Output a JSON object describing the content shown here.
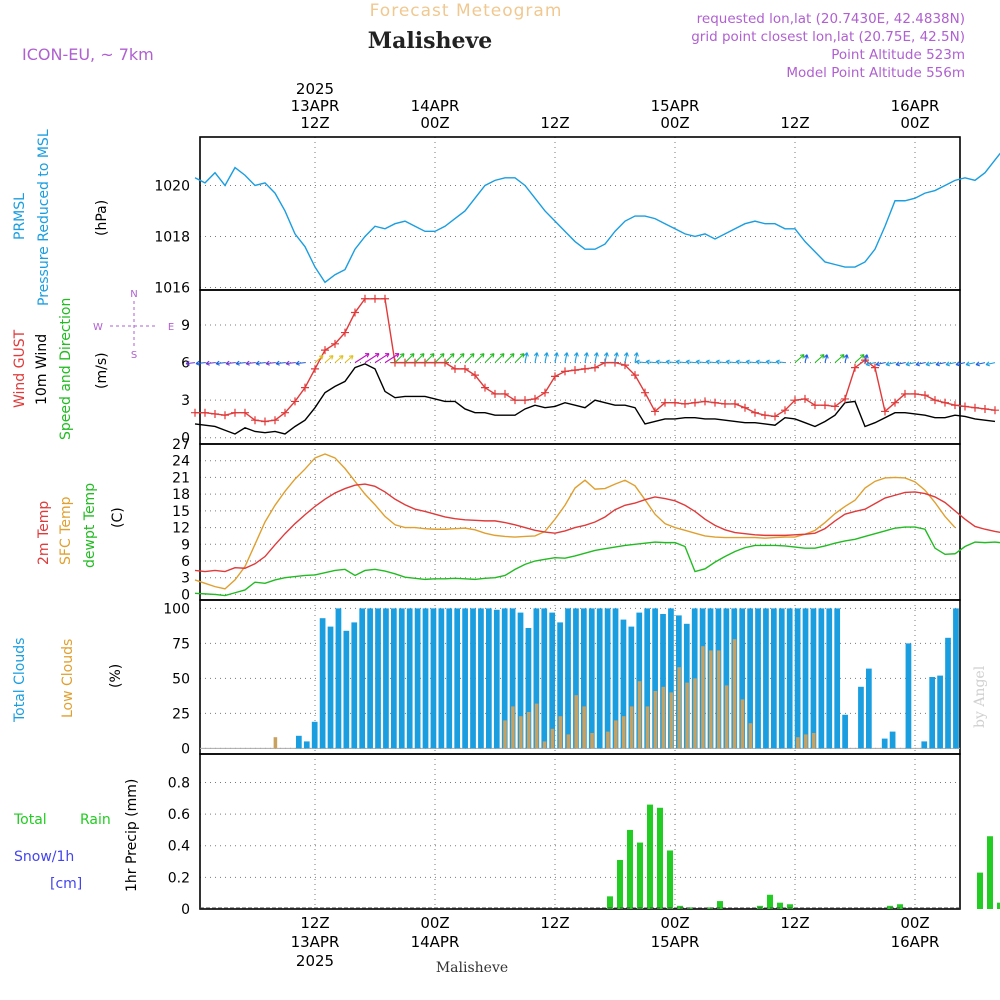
{
  "header": {
    "subtitle": "Forecast Meteogram",
    "location": "Malisheve",
    "model": "ICON-EU, ~ 7km",
    "info": [
      "requested lon,lat (20.7430E, 42.4838N)",
      "grid point closest lon,lat (20.75E, 42.5N)",
      "Point Altitude 523m",
      "Model Point Altitude 556m"
    ],
    "watermark": "by Angel",
    "footer_location": "Malisheve"
  },
  "colors": {
    "pressure": "#1a9ee0",
    "gust": "#e03a3a",
    "wind": "#000000",
    "direction": "#22bb22",
    "temp2m": "#e03a3a",
    "sfc": "#e0a030",
    "dewpt": "#22bb22",
    "total_clouds": "#1a9ee0",
    "low_clouds": "#c8a060",
    "rain": "#22cc22",
    "snow": "#4444ee",
    "info": "#b060d0",
    "subtitle": "#f0c890"
  },
  "axes": {
    "top_ticks": [
      {
        "x": 12,
        "lines": [
          "2025",
          "13APR",
          "12Z"
        ]
      },
      {
        "x": 24,
        "lines": [
          "14APR",
          "00Z"
        ]
      },
      {
        "x": 36,
        "lines": [
          "12Z"
        ]
      },
      {
        "x": 48,
        "lines": [
          "15APR",
          "00Z"
        ]
      },
      {
        "x": 60,
        "lines": [
          "12Z"
        ]
      },
      {
        "x": 72,
        "lines": [
          "16APR",
          "00Z"
        ]
      }
    ],
    "bottom_ticks": [
      {
        "x": 12,
        "lines": [
          "12Z",
          "13APR",
          "2025"
        ]
      },
      {
        "x": 24,
        "lines": [
          "00Z",
          "14APR"
        ]
      },
      {
        "x": 36,
        "lines": [
          "12Z"
        ]
      },
      {
        "x": 48,
        "lines": [
          "00Z",
          "15APR"
        ]
      },
      {
        "x": 60,
        "lines": [
          "12Z"
        ]
      },
      {
        "x": 72,
        "lines": [
          "00Z",
          "16APR"
        ]
      }
    ],
    "x_range_hours": [
      0.5,
      76.5
    ]
  },
  "panel_labels": {
    "pressure": {
      "l1": "PRMSL",
      "l2": "Pressure Reduced to MSL",
      "unit": "(hPa)"
    },
    "wind": {
      "l1": "Wind GUST",
      "l2": "10m Wind",
      "l3": "Speed and Direction",
      "unit": "(m/s)",
      "compass_n": "N",
      "compass_s": "S",
      "compass_w": "W",
      "compass_e": "E"
    },
    "temp": {
      "l1": "2m Temp",
      "l2": "SFC Temp",
      "l3": "dewpt Temp",
      "unit": "(C)"
    },
    "clouds": {
      "l1": "Total Clouds",
      "l2": "Low Clouds",
      "unit": "(%)"
    },
    "precip": {
      "l1": "Total",
      "l1b": "Rain",
      "l2": "Snow/1h",
      "l3": "[cm]",
      "unit": "1hr Precip (mm)"
    }
  },
  "chart_data": [
    {
      "type": "line",
      "ylim": [
        1015.9,
        1021.9
      ],
      "yticks": [
        1016,
        1018,
        1020
      ],
      "series": [
        {
          "values": [
            1020.3,
            1020.1,
            1020.5,
            1020,
            1020.7,
            1020.4,
            1020,
            1020.1,
            1019.7,
            1019,
            1018.1,
            1017.6,
            1016.8,
            1016.2,
            1016.5,
            1016.7,
            1017.5,
            1018,
            1018.4,
            1018.3,
            1018.5,
            1018.6,
            1018.4,
            1018.2,
            1018.2,
            1018.4,
            1018.7,
            1019,
            1019.5,
            1020,
            1020.2,
            1020.3,
            1020.3,
            1020,
            1019.5,
            1019,
            1018.6,
            1018.2,
            1017.8,
            1017.5,
            1017.5,
            1017.7,
            1018.2,
            1018.6,
            1018.8,
            1018.8,
            1018.7,
            1018.5,
            1018.3,
            1018.1,
            1018,
            1018.1,
            1017.9,
            1018.1,
            1018.3,
            1018.5,
            1018.6,
            1018.5,
            1018.5,
            1018.3,
            1018.3,
            1017.8,
            1017.4,
            1017,
            1016.9,
            1016.8,
            1016.8,
            1017,
            1017.5,
            1018.4,
            1019.4,
            1019.4,
            1019.5,
            1019.7,
            1019.8,
            1020,
            1020.2,
            1020.3,
            1020.2,
            1020.5,
            1021,
            1021.5
          ]
        }
      ]
    },
    {
      "type": "line",
      "ylim": [
        -0.5,
        11.8
      ],
      "yticks": [
        0,
        3,
        6,
        9
      ],
      "series": [
        {
          "name": "Wind GUST",
          "values": [
            2,
            2,
            1.9,
            1.8,
            2,
            2,
            1.4,
            1.3,
            1.4,
            2,
            2.9,
            4,
            5.5,
            7,
            7.5,
            8.4,
            10,
            11.1,
            11.1,
            11.1,
            6,
            6,
            6,
            6,
            6,
            6,
            5.5,
            5.5,
            5,
            4,
            3.5,
            3.5,
            3,
            3,
            3.1,
            3.6,
            4.9,
            5.3,
            5.4,
            5.5,
            5.6,
            6,
            6,
            5.8,
            5,
            3.6,
            2.1,
            2.8,
            2.8,
            2.7,
            2.8,
            2.9,
            2.8,
            2.7,
            2.7,
            2.4,
            2,
            1.8,
            1.7,
            2.2,
            3,
            3.1,
            2.6,
            2.6,
            2.5,
            3.1,
            5.6,
            6.2,
            5.6,
            2.1,
            2.8,
            3.5,
            3.5,
            3.4,
            3,
            2.8,
            2.6,
            2.5,
            2.4,
            2.3,
            2.2
          ]
        },
        {
          "name": "10m Wind",
          "values": [
            1.1,
            1,
            0.9,
            0.6,
            0.3,
            0.8,
            0.5,
            0.4,
            0.5,
            0.3,
            0.9,
            1.4,
            2.4,
            3.6,
            4.1,
            4.5,
            5.6,
            5.9,
            5.5,
            3.7,
            3.2,
            3.3,
            3.3,
            3.3,
            3.1,
            2.9,
            2.9,
            2.3,
            2,
            2,
            1.8,
            1.8,
            1.8,
            2.3,
            2.6,
            2.4,
            2.5,
            2.8,
            2.6,
            2.4,
            3,
            2.8,
            2.6,
            2.6,
            2.4,
            1.1,
            1.3,
            1.5,
            1.5,
            1.6,
            1.6,
            1.5,
            1.5,
            1.4,
            1.3,
            1.2,
            1.2,
            1.1,
            1,
            1.6,
            1.5,
            1.2,
            0.9,
            1.3,
            1.8,
            2.8,
            2.9,
            0.9,
            1.2,
            1.6,
            2,
            2,
            1.9,
            1.8,
            1.6,
            1.6,
            1.8,
            1.7,
            1.5,
            1.4,
            1.3
          ]
        }
      ]
    },
    {
      "type": "line",
      "ylim": [
        -1,
        27
      ],
      "yticks": [
        0,
        3,
        6,
        9,
        12,
        15,
        18,
        21,
        24,
        27
      ],
      "series": [
        {
          "name": "2m Temp",
          "values": [
            4.3,
            4.1,
            4.3,
            4.1,
            4.8,
            4.7,
            5.5,
            6.8,
            8.9,
            10.9,
            12.7,
            14.3,
            15.8,
            17.1,
            18.2,
            19,
            19.6,
            19.8,
            19.4,
            18.4,
            17.1,
            16.1,
            15.3,
            14.9,
            14.4,
            13.9,
            13.6,
            13.4,
            13.3,
            13.2,
            13.2,
            12.9,
            12.5,
            12,
            11.5,
            11.2,
            11,
            11.4,
            12,
            12.4,
            13,
            13.9,
            15.2,
            16,
            16.4,
            17,
            17.5,
            17.2,
            16.8,
            16,
            14.9,
            13.5,
            12.4,
            11.6,
            11.1,
            10.9,
            10.7,
            10.6,
            10.6,
            10.6,
            10.7,
            10.8,
            11,
            11.8,
            13.2,
            14.4,
            14.9,
            15.3,
            16.3,
            17.3,
            17.8,
            18.3,
            18.4,
            18.1,
            17.5,
            16.5,
            15,
            13.5,
            12.2,
            11.7,
            11.3,
            11
          ]
        },
        {
          "name": "SFC Temp",
          "values": [
            2.6,
            2,
            1.4,
            1,
            2.6,
            5,
            9,
            13,
            16,
            18.5,
            20.7,
            22.5,
            24.5,
            25.2,
            24.5,
            22.6,
            20.3,
            18,
            16.1,
            14,
            12.5,
            12,
            12,
            11.8,
            11.7,
            11.7,
            11.8,
            11.9,
            11.6,
            11,
            10.6,
            10.4,
            10.3,
            10.4,
            10.5,
            11.3,
            13.5,
            16,
            19.1,
            20.5,
            18.9,
            19,
            19.8,
            20.5,
            19.5,
            17,
            14.4,
            12.7,
            12,
            11.5,
            11,
            10.5,
            10.3,
            10.2,
            10.2,
            10.2,
            10.2,
            10.1,
            10.2,
            10.3,
            10.3,
            10.8,
            11.5,
            12.9,
            14.5,
            15.8,
            16.9,
            19.1,
            20.3,
            20.9,
            21,
            20.9,
            20.2,
            18.7,
            16.5,
            14,
            12
          ]
        },
        {
          "name": "dewpt Temp",
          "values": [
            0.2,
            0.1,
            0,
            -0.2,
            0.3,
            0.8,
            2.2,
            2,
            2.6,
            3,
            3.2,
            3.4,
            3.5,
            3.9,
            4.3,
            4.5,
            3.4,
            4.3,
            4.5,
            4.2,
            3.7,
            3.1,
            2.9,
            2.7,
            2.8,
            2.8,
            2.9,
            2.8,
            2.7,
            2.9,
            3,
            3.4,
            4.5,
            5.4,
            6,
            6.3,
            6.6,
            6.5,
            6.9,
            7.4,
            7.9,
            8.2,
            8.5,
            8.8,
            9,
            9.2,
            9.4,
            9.3,
            9.3,
            8.6,
            4.1,
            4.6,
            5.8,
            6.8,
            7.7,
            8.4,
            8.8,
            8.8,
            8.8,
            8.7,
            8.5,
            8.3,
            8.3,
            8.7,
            9.2,
            9.6,
            9.9,
            10.4,
            10.9,
            11.4,
            11.9,
            12.1,
            12.1,
            11.7,
            8.3,
            7.2,
            7.3,
            8.6,
            9.4,
            9.3,
            9.4,
            9.2
          ]
        }
      ]
    },
    {
      "type": "bar",
      "ylim": [
        -4,
        106
      ],
      "yticks": [
        0,
        25,
        50,
        75,
        100
      ],
      "series": [
        {
          "name": "Total Clouds",
          "values": [
            0,
            0,
            0,
            0,
            0,
            0,
            0,
            0,
            0,
            0,
            0,
            0,
            9,
            5,
            19,
            93,
            87,
            100,
            84,
            90,
            100,
            100,
            100,
            100,
            100,
            100,
            100,
            100,
            100,
            100,
            100,
            100,
            100,
            100,
            100,
            100,
            100,
            99,
            100,
            100,
            97,
            86,
            100,
            100,
            97,
            90,
            100,
            100,
            100,
            100,
            100,
            100,
            100,
            92,
            87,
            97,
            100,
            100,
            96,
            100,
            95,
            89,
            100,
            100,
            100,
            100,
            100,
            100,
            100,
            100,
            100,
            100,
            100,
            100,
            100,
            100,
            100,
            100,
            100,
            100,
            100,
            24,
            0,
            44,
            57,
            0,
            7,
            12,
            0,
            75,
            0,
            5,
            51,
            52,
            79,
            100
          ]
        },
        {
          "name": "Low Clouds",
          "values": [
            0,
            0,
            0,
            0,
            0,
            0,
            0,
            0,
            0,
            0,
            0,
            0,
            0,
            0,
            0,
            8,
            0,
            0,
            0,
            0,
            0,
            0,
            0,
            0,
            0,
            0,
            0,
            0,
            0,
            0,
            0,
            0,
            0,
            0,
            0,
            0,
            0,
            0,
            0,
            0,
            0,
            0,
            0,
            0,
            20,
            30,
            23,
            26,
            32,
            5,
            14,
            23,
            10,
            38,
            30,
            11,
            0,
            12,
            20,
            23,
            30,
            48,
            30,
            41,
            44,
            40,
            58,
            47,
            50,
            73,
            70,
            70,
            45,
            78,
            35,
            18,
            0,
            0,
            0,
            0,
            0,
            8,
            10,
            11
          ]
        }
      ]
    },
    {
      "type": "bar",
      "ylim": [
        0,
        0.98
      ],
      "yticks": [
        0,
        0.2,
        0.4,
        0.6,
        0.8
      ],
      "series": [
        {
          "name": "Total Rain",
          "values": [
            0,
            0,
            0,
            0,
            0,
            0,
            0,
            0,
            0,
            0,
            0,
            0,
            0,
            0,
            0,
            0,
            0,
            0,
            0,
            0,
            0,
            0,
            0,
            0,
            0,
            0,
            0,
            0,
            0,
            0,
            0,
            0,
            0,
            0.08,
            0.31,
            0.5,
            0.42,
            0.66,
            0.64,
            0.37,
            0.02,
            0.01,
            0,
            0.01,
            0.05,
            0,
            0,
            0,
            0.02,
            0.09,
            0.04,
            0.03,
            0,
            0,
            0,
            0,
            0,
            0,
            0,
            0,
            0,
            0.02,
            0.03,
            0,
            0,
            0,
            0,
            0,
            0,
            0,
            0.23,
            0.46,
            0.04,
            0,
            0,
            0,
            0,
            0,
            0,
            0,
            0,
            0,
            0,
            0,
            0,
            0,
            0,
            0,
            0,
            0,
            0,
            0,
            0,
            0,
            0,
            0
          ]
        }
      ]
    }
  ]
}
